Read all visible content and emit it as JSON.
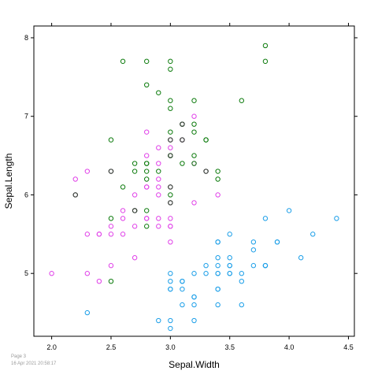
{
  "footer": {
    "page": "Page 3",
    "timestamp": "16 Apr 2021 20:58:17"
  },
  "colors": {
    "blue": "#1a9ee8",
    "magenta": "#e040e8",
    "green": "#0b7a0b",
    "dark": "#404040",
    "axis": "#000000"
  },
  "chart_data": {
    "type": "scatter",
    "title": "",
    "xlabel": "Sepal.Width",
    "ylabel": "Sepal.Length",
    "xlim": [
      1.85,
      4.55
    ],
    "ylim": [
      4.2,
      8.15
    ],
    "grid": false,
    "marker": "open-circle",
    "x_ticks": [
      {
        "value": 2.0,
        "label": "2.0"
      },
      {
        "value": 2.5,
        "label": "2.5"
      },
      {
        "value": 3.0,
        "label": "3.0"
      },
      {
        "value": 3.5,
        "label": "3.5"
      },
      {
        "value": 4.0,
        "label": "4.0"
      },
      {
        "value": 4.5,
        "label": "4.5"
      }
    ],
    "y_ticks": [
      {
        "value": 5,
        "label": "5"
      },
      {
        "value": 6,
        "label": "6"
      },
      {
        "value": 7,
        "label": "7"
      },
      {
        "value": 8,
        "label": "8"
      }
    ],
    "series": [
      {
        "color": "#1a9ee8",
        "points": [
          [
            3.5,
            5.1
          ],
          [
            3.0,
            4.9
          ],
          [
            3.2,
            4.7
          ],
          [
            3.1,
            4.6
          ],
          [
            3.6,
            5.0
          ],
          [
            3.9,
            5.4
          ],
          [
            3.4,
            4.6
          ],
          [
            3.4,
            5.0
          ],
          [
            2.9,
            4.4
          ],
          [
            3.1,
            4.9
          ],
          [
            3.7,
            5.4
          ],
          [
            3.4,
            4.8
          ],
          [
            3.0,
            4.8
          ],
          [
            3.0,
            4.3
          ],
          [
            4.0,
            5.8
          ],
          [
            4.4,
            5.7
          ],
          [
            3.9,
            5.4
          ],
          [
            3.5,
            5.1
          ],
          [
            3.8,
            5.7
          ],
          [
            3.8,
            5.1
          ],
          [
            3.4,
            5.4
          ],
          [
            3.7,
            5.1
          ],
          [
            3.6,
            4.6
          ],
          [
            3.3,
            5.1
          ],
          [
            3.4,
            4.8
          ],
          [
            3.0,
            5.0
          ],
          [
            3.4,
            5.0
          ],
          [
            3.5,
            5.2
          ],
          [
            3.4,
            5.2
          ],
          [
            3.2,
            4.7
          ],
          [
            3.1,
            4.8
          ],
          [
            3.4,
            5.4
          ],
          [
            4.1,
            5.2
          ],
          [
            4.2,
            5.5
          ],
          [
            3.1,
            4.9
          ],
          [
            3.2,
            5.0
          ],
          [
            3.5,
            5.5
          ],
          [
            3.6,
            4.9
          ],
          [
            3.0,
            4.4
          ],
          [
            3.4,
            5.1
          ],
          [
            3.5,
            5.0
          ],
          [
            2.3,
            4.5
          ],
          [
            3.2,
            4.4
          ],
          [
            3.5,
            5.0
          ],
          [
            3.8,
            5.1
          ],
          [
            3.0,
            4.8
          ],
          [
            3.8,
            5.1
          ],
          [
            3.2,
            4.6
          ],
          [
            3.7,
            5.3
          ],
          [
            3.3,
            5.0
          ]
        ]
      },
      {
        "color": "#e040e8",
        "points": [
          [
            3.2,
            7.0
          ],
          [
            3.2,
            6.4
          ],
          [
            3.1,
            6.9
          ],
          [
            2.3,
            5.5
          ],
          [
            2.8,
            6.5
          ],
          [
            2.8,
            5.7
          ],
          [
            3.3,
            6.3
          ],
          [
            2.4,
            4.9
          ],
          [
            2.9,
            6.6
          ],
          [
            2.7,
            5.2
          ],
          [
            2.0,
            5.0
          ],
          [
            3.0,
            5.9
          ],
          [
            2.2,
            6.0
          ],
          [
            2.9,
            6.1
          ],
          [
            2.9,
            5.6
          ],
          [
            3.1,
            6.7
          ],
          [
            3.0,
            5.6
          ],
          [
            2.7,
            5.8
          ],
          [
            2.2,
            6.2
          ],
          [
            2.5,
            5.6
          ],
          [
            3.2,
            5.9
          ],
          [
            2.8,
            6.1
          ],
          [
            2.5,
            6.3
          ],
          [
            2.8,
            6.1
          ],
          [
            2.9,
            6.4
          ],
          [
            3.0,
            6.6
          ],
          [
            2.8,
            6.8
          ],
          [
            3.0,
            6.7
          ],
          [
            2.9,
            6.0
          ],
          [
            2.6,
            5.7
          ],
          [
            2.4,
            5.5
          ],
          [
            2.4,
            5.5
          ],
          [
            2.7,
            5.8
          ],
          [
            2.7,
            6.0
          ],
          [
            3.0,
            5.4
          ],
          [
            3.4,
            6.0
          ],
          [
            3.1,
            6.7
          ],
          [
            2.3,
            6.3
          ],
          [
            3.0,
            5.6
          ],
          [
            2.5,
            5.5
          ],
          [
            2.6,
            5.5
          ],
          [
            3.0,
            6.1
          ],
          [
            2.6,
            5.8
          ],
          [
            2.3,
            5.0
          ],
          [
            2.7,
            5.6
          ],
          [
            3.0,
            5.7
          ],
          [
            2.9,
            5.7
          ],
          [
            2.9,
            6.2
          ],
          [
            2.5,
            5.1
          ],
          [
            2.8,
            5.7
          ]
        ]
      },
      {
        "color": "#0b7a0b",
        "points": [
          [
            3.3,
            6.3
          ],
          [
            2.7,
            5.8
          ],
          [
            3.0,
            7.1
          ],
          [
            2.9,
            6.3
          ],
          [
            3.0,
            6.5
          ],
          [
            3.0,
            7.6
          ],
          [
            2.5,
            4.9
          ],
          [
            2.9,
            7.3
          ],
          [
            2.5,
            6.7
          ],
          [
            3.6,
            7.2
          ],
          [
            3.2,
            6.5
          ],
          [
            2.7,
            6.4
          ],
          [
            3.0,
            6.8
          ],
          [
            2.5,
            5.7
          ],
          [
            2.8,
            5.8
          ],
          [
            3.2,
            6.4
          ],
          [
            3.0,
            6.5
          ],
          [
            3.8,
            7.7
          ],
          [
            2.6,
            7.7
          ],
          [
            2.2,
            6.0
          ],
          [
            3.2,
            6.9
          ],
          [
            2.8,
            5.6
          ],
          [
            2.8,
            7.7
          ],
          [
            2.7,
            6.3
          ],
          [
            3.3,
            6.7
          ],
          [
            3.2,
            7.2
          ],
          [
            2.8,
            6.2
          ],
          [
            3.0,
            6.1
          ],
          [
            2.8,
            6.4
          ],
          [
            3.0,
            7.2
          ],
          [
            2.8,
            7.4
          ],
          [
            3.8,
            7.9
          ],
          [
            2.8,
            6.4
          ],
          [
            2.8,
            6.3
          ],
          [
            2.6,
            6.1
          ],
          [
            3.0,
            7.7
          ],
          [
            3.4,
            6.3
          ],
          [
            3.1,
            6.4
          ],
          [
            3.0,
            6.0
          ],
          [
            3.1,
            6.9
          ],
          [
            3.1,
            6.7
          ],
          [
            3.1,
            6.9
          ],
          [
            2.7,
            5.8
          ],
          [
            3.2,
            6.8
          ],
          [
            3.3,
            6.7
          ],
          [
            3.0,
            6.7
          ],
          [
            2.5,
            6.3
          ],
          [
            3.0,
            6.5
          ],
          [
            3.4,
            6.2
          ],
          [
            3.0,
            5.9
          ]
        ]
      },
      {
        "color": "#404040",
        "points": [
          [
            2.2,
            6.0
          ],
          [
            2.5,
            6.3
          ],
          [
            3.0,
            6.1
          ],
          [
            2.7,
            5.8
          ],
          [
            3.3,
            6.3
          ],
          [
            3.0,
            6.7
          ],
          [
            3.1,
            6.9
          ],
          [
            3.0,
            5.9
          ],
          [
            3.0,
            6.5
          ],
          [
            3.1,
            6.7
          ]
        ]
      }
    ]
  }
}
